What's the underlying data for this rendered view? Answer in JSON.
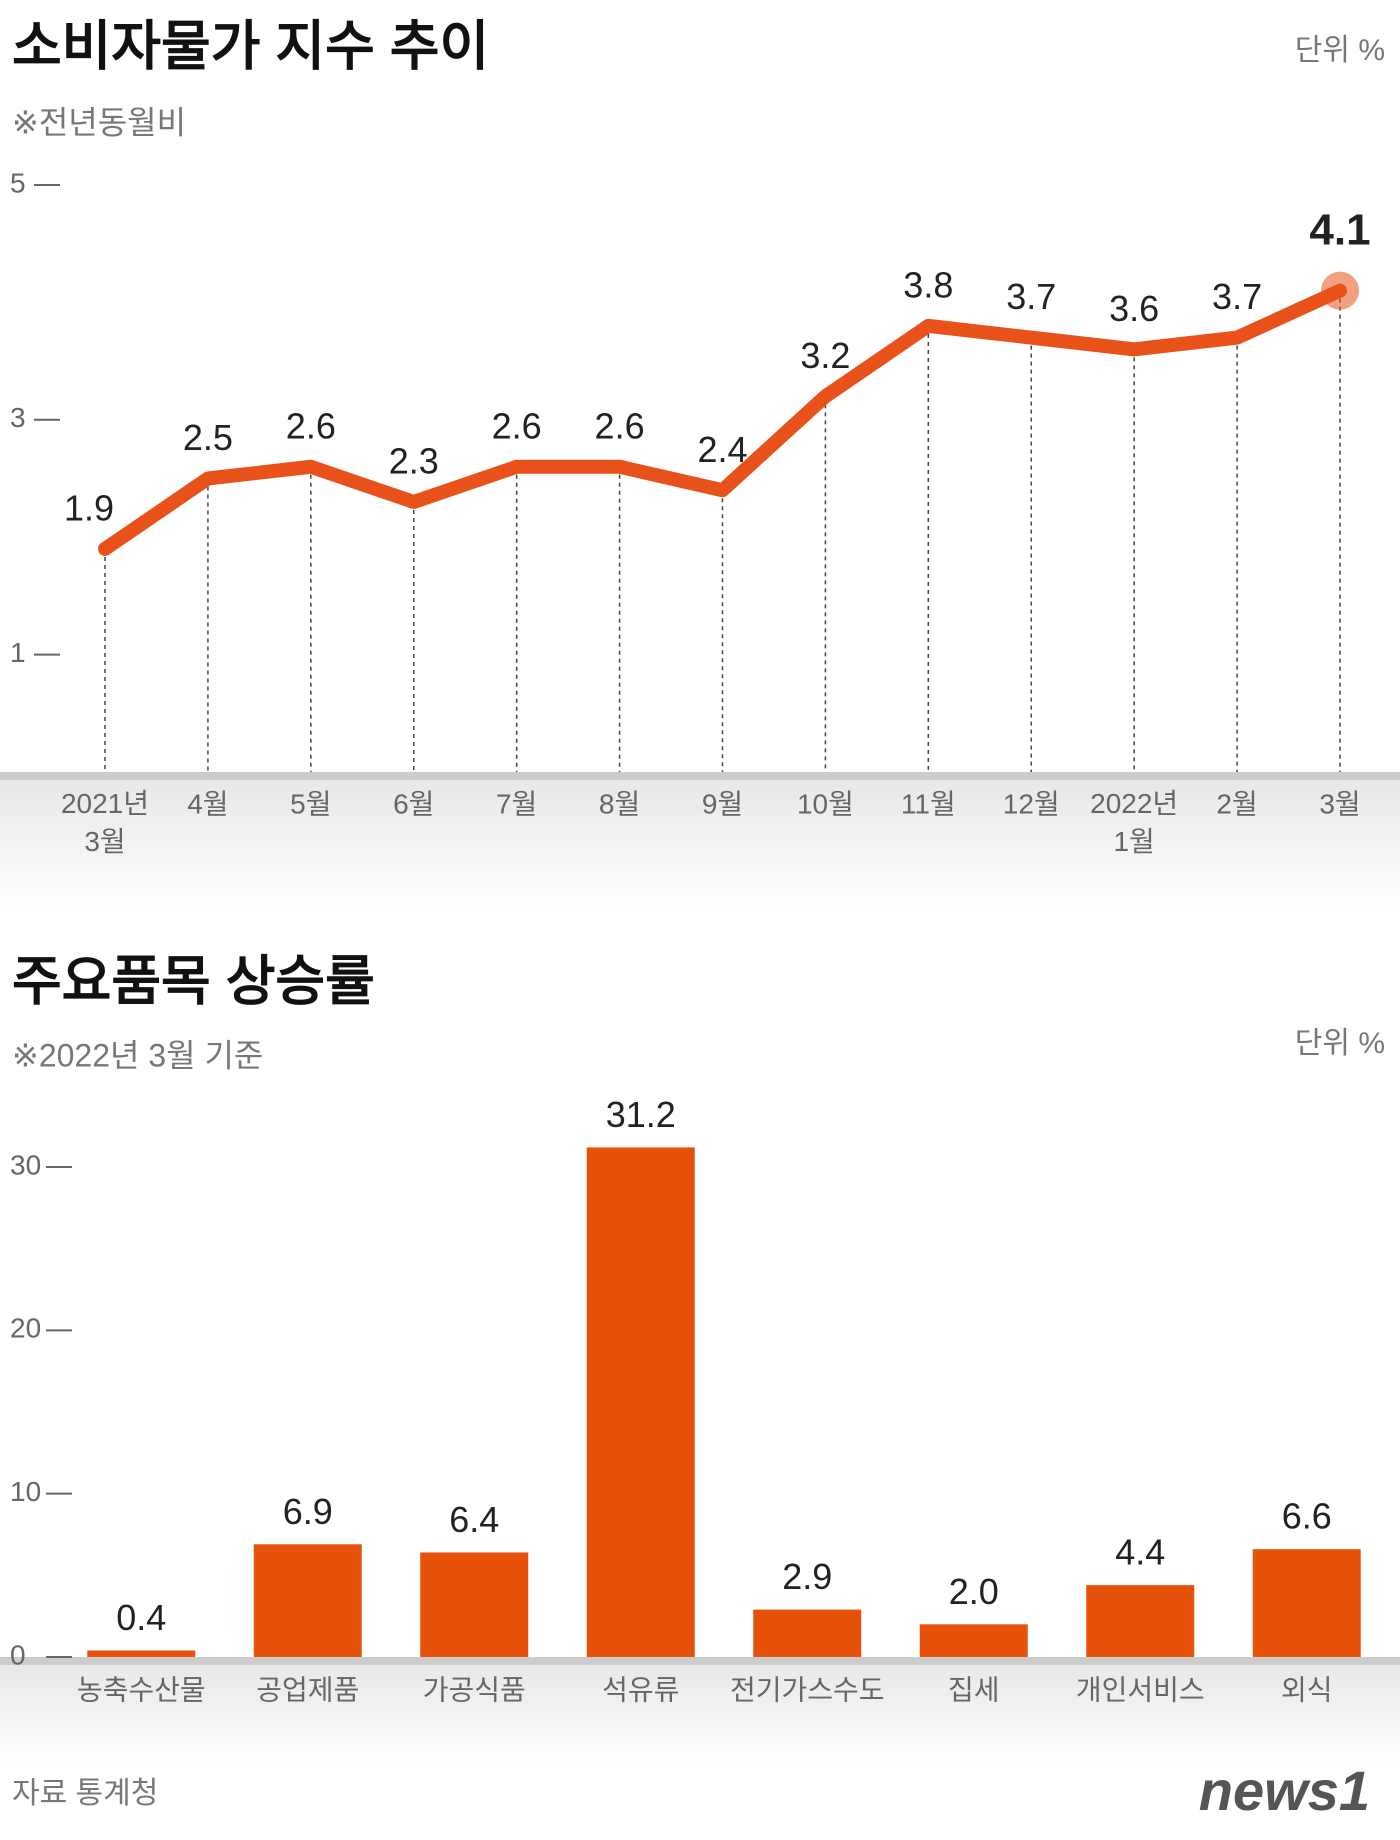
{
  "chart_data": [
    {
      "type": "line",
      "title": "소비자물가 지수 추이",
      "subtitle": "※전년동월비",
      "unit": "단위 %",
      "categories": [
        "2021년 3월",
        "4월",
        "5월",
        "6월",
        "7월",
        "8월",
        "9월",
        "10월",
        "11월",
        "12월",
        "2022년 1월",
        "2월",
        "3월"
      ],
      "values": [
        1.9,
        2.5,
        2.6,
        2.3,
        2.6,
        2.6,
        2.4,
        3.2,
        3.8,
        3.7,
        3.6,
        3.7,
        4.1
      ],
      "color": "#e8521a",
      "ylim": [
        0,
        5
      ],
      "yticks": [
        1,
        3,
        5
      ]
    },
    {
      "type": "bar",
      "title": "주요품목 상승률",
      "subtitle": "※2022년 3월 기준",
      "unit": "단위 %",
      "categories": [
        "농축수산물",
        "공업제품",
        "가공식품",
        "석유류",
        "전기가스수도",
        "집세",
        "개인서비스",
        "외식"
      ],
      "values": [
        0.4,
        6.9,
        6.4,
        31.2,
        2.9,
        2.0,
        4.4,
        6.6
      ],
      "value_labels": [
        "0.4",
        "6.9",
        "6.4",
        "31.2",
        "2.9",
        "2.0",
        "4.4",
        "6.6"
      ],
      "color": "#e6520c",
      "ylim": [
        0,
        33
      ],
      "yticks": [
        0,
        10,
        20,
        30
      ]
    }
  ],
  "source": "자료 통계청",
  "logo": "news1"
}
